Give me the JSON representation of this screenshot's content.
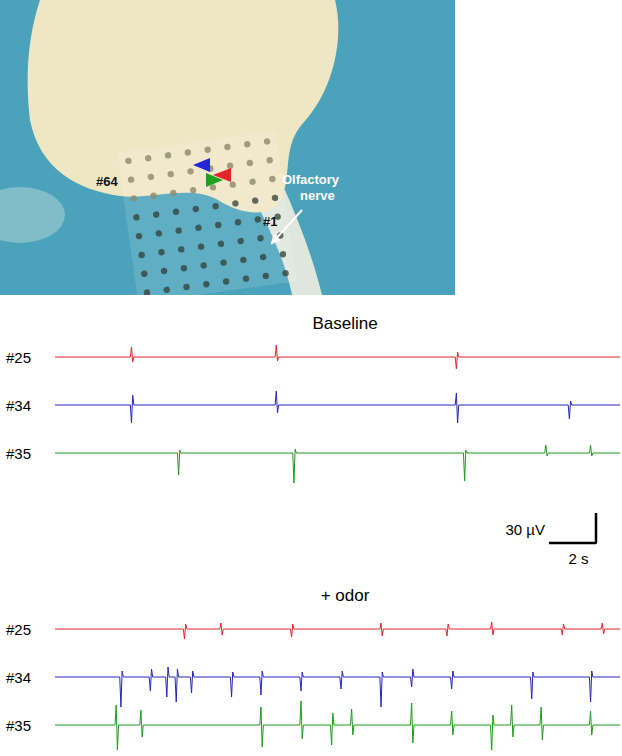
{
  "photo": {
    "electrode_labels": [
      "#64",
      "#1"
    ],
    "nerve_label": "Olfactory nerve",
    "arrows": [
      {
        "color": "#2626d9"
      },
      {
        "color": "#e5252a"
      },
      {
        "color": "#1fa01f"
      }
    ]
  },
  "chart_data": [
    {
      "type": "line",
      "title": "Baseline",
      "xlim": [
        0,
        24
      ],
      "ylim": [
        -30,
        30
      ],
      "tick_labels": false,
      "series": [
        {
          "name": "#25",
          "color": "#e5252a",
          "x": [
            0,
            3.2,
            3.25,
            3.3,
            3.35,
            9.35,
            9.4,
            9.45,
            9.5,
            17,
            17.05,
            17.1,
            17.15,
            24
          ],
          "values": [
            0,
            0,
            10,
            -5,
            0,
            0,
            12,
            -4,
            0,
            0,
            -12,
            5,
            0,
            0
          ]
        },
        {
          "name": "#34",
          "color": "#2626b8",
          "x": [
            0,
            3.2,
            3.25,
            3.3,
            3.35,
            9.35,
            9.4,
            9.45,
            9.5,
            17,
            17.05,
            17.1,
            17.15,
            21.8,
            21.85,
            21.9,
            21.95,
            24
          ],
          "values": [
            0,
            0,
            -18,
            10,
            0,
            0,
            14,
            -8,
            0,
            0,
            12,
            -18,
            0,
            0,
            -14,
            4,
            0,
            0
          ]
        },
        {
          "name": "#35",
          "color": "#1f9a1f",
          "x": [
            0,
            5.2,
            5.25,
            5.3,
            5.35,
            10.1,
            10.15,
            10.2,
            10.25,
            17.35,
            17.4,
            17.45,
            17.5,
            20.8,
            20.85,
            20.9,
            20.95,
            22.7,
            22.75,
            22.8,
            22.85,
            24
          ],
          "values": [
            0,
            0,
            -22,
            3,
            0,
            0,
            -30,
            4,
            0,
            0,
            -28,
            3,
            0,
            0,
            8,
            -3,
            0,
            0,
            8,
            -3,
            0,
            0
          ]
        }
      ]
    },
    {
      "type": "line",
      "title": "+ odor",
      "xlim": [
        0,
        24
      ],
      "ylim": [
        -30,
        30
      ],
      "tick_labels": false,
      "series": [
        {
          "name": "#25",
          "color": "#e5252a",
          "x": [
            0,
            5.45,
            5.5,
            5.55,
            5.6,
            7,
            7.05,
            7.1,
            7.15,
            10,
            10.05,
            10.1,
            10.15,
            13.8,
            13.85,
            13.9,
            13.95,
            16.6,
            16.65,
            16.7,
            16.75,
            18.5,
            18.55,
            18.6,
            18.65,
            21.5,
            21.55,
            21.6,
            21.65,
            23.2,
            23.25,
            23.3,
            23.35,
            24
          ],
          "values": [
            0,
            0,
            -10,
            5,
            0,
            0,
            6,
            -6,
            0,
            0,
            -8,
            5,
            0,
            0,
            6,
            -7,
            0,
            0,
            -7,
            5,
            0,
            0,
            7,
            -6,
            0,
            0,
            -6,
            5,
            0,
            0,
            6,
            -5,
            0,
            0
          ]
        },
        {
          "name": "#34",
          "color": "#2626b8",
          "x": [
            0,
            2.75,
            2.8,
            2.85,
            2.9,
            4,
            4.05,
            4.1,
            4.15,
            4.7,
            4.75,
            4.8,
            4.85,
            5.1,
            5.15,
            5.2,
            5.25,
            5.75,
            5.8,
            5.85,
            5.9,
            7.45,
            7.5,
            7.55,
            7.6,
            8.7,
            8.75,
            8.8,
            8.85,
            10.4,
            10.45,
            10.5,
            10.55,
            12.1,
            12.15,
            12.2,
            12.25,
            13.8,
            13.85,
            13.9,
            13.95,
            15.1,
            15.15,
            15.2,
            15.25,
            16.8,
            16.85,
            16.9,
            16.95,
            20.2,
            20.25,
            20.3,
            20.35,
            22.7,
            22.75,
            22.8,
            22.85,
            24
          ],
          "values": [
            0,
            0,
            -30,
            6,
            0,
            0,
            -14,
            8,
            0,
            0,
            -20,
            10,
            0,
            0,
            -25,
            8,
            0,
            0,
            -16,
            6,
            0,
            0,
            -20,
            5,
            0,
            0,
            -18,
            6,
            0,
            0,
            -14,
            5,
            0,
            0,
            -12,
            6,
            0,
            0,
            -30,
            5,
            0,
            0,
            -10,
            8,
            0,
            0,
            -12,
            6,
            0,
            0,
            -22,
            5,
            0,
            0,
            -25,
            6,
            0,
            0
          ]
        },
        {
          "name": "#35",
          "color": "#1f9a1f",
          "x": [
            0,
            2.55,
            2.6,
            2.65,
            2.7,
            3.6,
            3.65,
            3.7,
            3.75,
            8.7,
            8.75,
            8.8,
            8.85,
            10.4,
            10.45,
            10.5,
            10.55,
            11.7,
            11.75,
            11.8,
            11.85,
            12.55,
            12.6,
            12.65,
            12.7,
            15.1,
            15.15,
            15.2,
            15.25,
            16.8,
            16.85,
            16.9,
            16.95,
            18.5,
            18.55,
            18.6,
            18.65,
            19.35,
            19.4,
            19.45,
            19.5,
            20.6,
            20.65,
            20.7,
            20.75,
            22.7,
            22.75,
            22.8,
            22.85,
            24
          ],
          "values": [
            0,
            0,
            20,
            -25,
            0,
            0,
            15,
            -12,
            0,
            0,
            18,
            -22,
            0,
            0,
            24,
            -14,
            0,
            0,
            -20,
            12,
            0,
            0,
            16,
            -10,
            0,
            0,
            22,
            -18,
            0,
            0,
            14,
            -10,
            0,
            0,
            -25,
            10,
            0,
            0,
            20,
            -12,
            0,
            0,
            18,
            -15,
            0,
            0,
            14,
            -10,
            0,
            0
          ]
        }
      ]
    }
  ],
  "scale_bar": {
    "y": 30,
    "y_label": "30 µV",
    "x": 2,
    "x_label": "2 s"
  }
}
